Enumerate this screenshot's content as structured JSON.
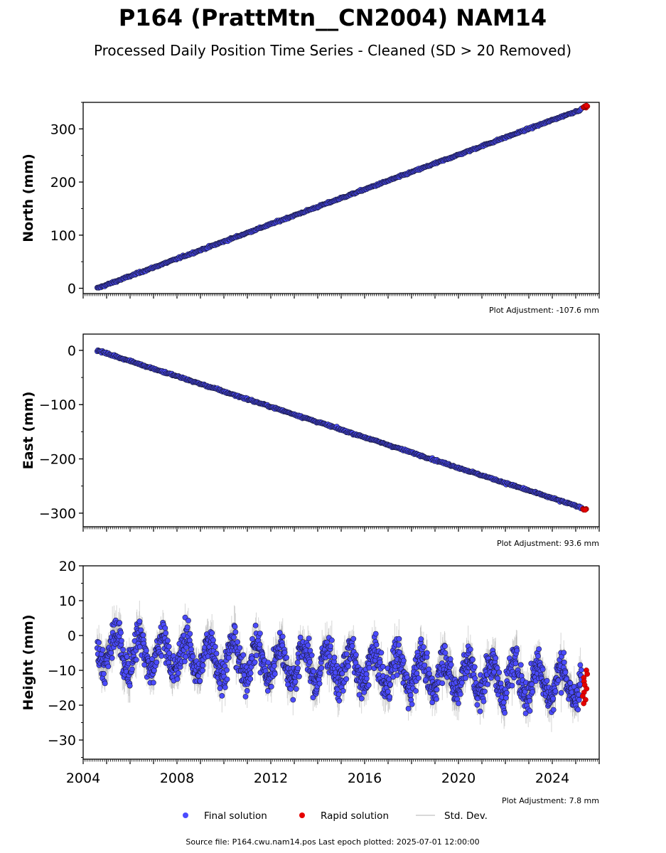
{
  "title": "P164 (PrattMtn__CN2004) NAM14",
  "subtitle": "Processed Daily Position Time Series - Cleaned (SD > 20 Removed)",
  "legend": {
    "final_label": "Final solution",
    "rapid_label": "Rapid solution",
    "std_label": "Std. Dev."
  },
  "footer": "Source file: P164.cwu.nam14.pos  Last epoch plotted: 2025-07-01 12:00:00",
  "colors": {
    "final": "#4b4bff",
    "final_edge": "#1a1a3a",
    "rapid": "#e60000",
    "std": "#888888"
  },
  "chart_data": [
    {
      "type": "scatter",
      "name": "north",
      "ylabel": "North (mm)",
      "xlim": [
        2004.0,
        2026.0
      ],
      "ylim": [
        -10,
        350
      ],
      "yticks": [
        0,
        100,
        200,
        300
      ],
      "yticklabels": [
        "0",
        "100",
        "200",
        "300"
      ],
      "xticks": [],
      "xticklabels": [],
      "adjustment": "Plot Adjustment: -107.6 mm",
      "final_trend": {
        "x": [
          2004.6,
          2025.25
        ],
        "y": [
          0,
          337
        ]
      },
      "rapid": {
        "x": [
          2025.3,
          2025.5
        ],
        "y": [
          340,
          344
        ]
      }
    },
    {
      "type": "scatter",
      "name": "east",
      "ylabel": "East (mm)",
      "xlim": [
        2004.0,
        2026.0
      ],
      "ylim": [
        -325,
        30
      ],
      "yticks": [
        0,
        -100,
        -200,
        -300
      ],
      "yticklabels": [
        "0",
        "−100",
        "−200",
        "−300"
      ],
      "xticks": [],
      "xticklabels": [],
      "adjustment": "Plot Adjustment: 93.6 mm",
      "final_trend": {
        "x": [
          2004.6,
          2025.25
        ],
        "y": [
          0,
          -290
        ]
      },
      "rapid": {
        "x": [
          2025.3,
          2025.5
        ],
        "y": [
          -292,
          -294
        ]
      }
    },
    {
      "type": "scatter",
      "name": "height",
      "ylabel": "Height (mm)",
      "xlim": [
        2004.0,
        2026.0
      ],
      "ylim": [
        -35.5,
        20
      ],
      "yticks": [
        20,
        10,
        0,
        -10,
        -20,
        -30
      ],
      "yticklabels": [
        "20",
        "10",
        "0",
        "−10",
        "−20",
        "−30"
      ],
      "xticks": [
        2004,
        2008,
        2012,
        2016,
        2020,
        2024
      ],
      "xticklabels": [
        "2004",
        "2008",
        "2012",
        "2016",
        "2020",
        "2024"
      ],
      "adjustment": "Plot Adjustment: 7.8 mm",
      "final_trend": {
        "x": [
          2004.6,
          2025.25
        ],
        "y": [
          -4,
          -14
        ]
      },
      "seasonal_amplitude": 5,
      "noise": 3.5,
      "rapid": {
        "x": [
          2025.3,
          2025.5
        ],
        "y": [
          -10,
          -19.5
        ]
      }
    }
  ]
}
